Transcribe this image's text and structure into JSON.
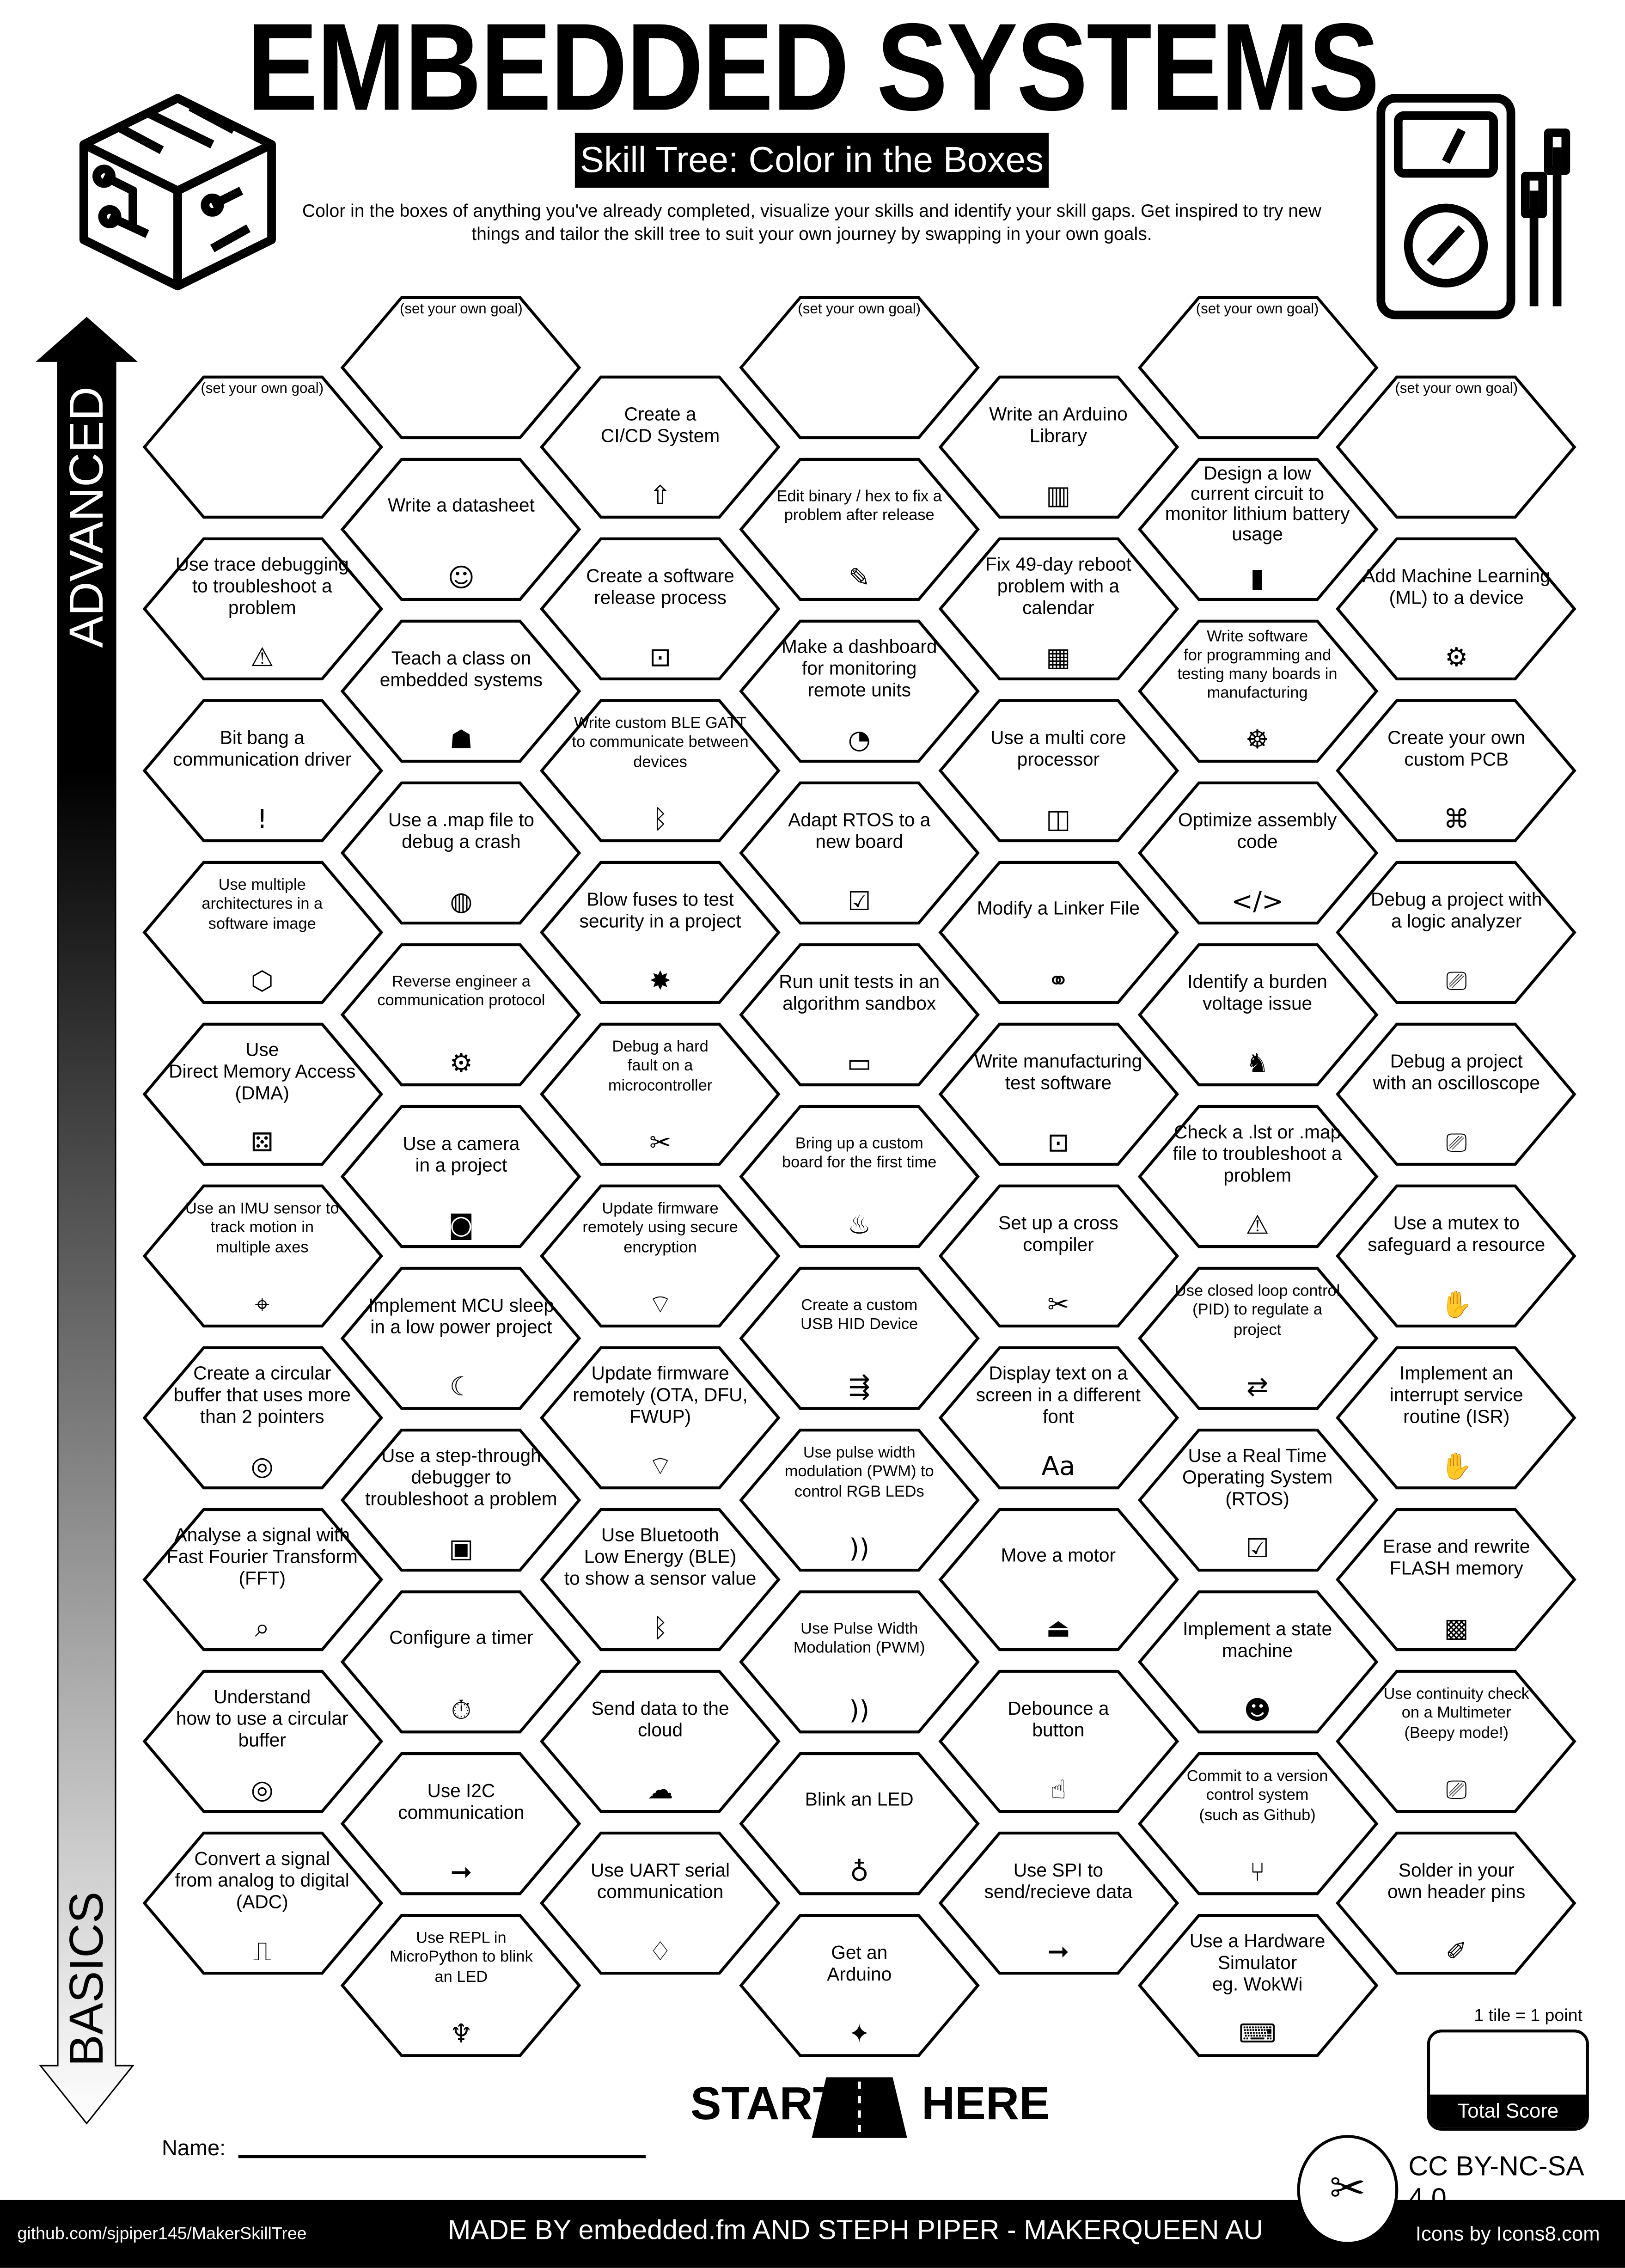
{
  "header": {
    "title": "EMBEDDED SYSTEMS",
    "subtitle": "Skill Tree: Color in the Boxes",
    "intro": "Color in the boxes of anything you've already completed, visualize your skills and identify your skill gaps.  Get inspired to try new things and tailor the skill tree to suit your own journey by swapping in your own goals.",
    "logo_icon": "circuit-cube-icon",
    "meter_icon": "multimeter-icon"
  },
  "axis": {
    "top": "ADVANCED",
    "bottom": "BASICS"
  },
  "columns": [
    [
      {
        "goal": "(set your own goal)"
      },
      {
        "label": "Use trace debugging\nto troubleshoot a\nproblem",
        "icon": "monitor-alert"
      },
      {
        "label": "Bit bang a\ncommunication driver",
        "icon": "exclamation"
      },
      {
        "label": "Use multiple\narchitectures in a\nsoftware image",
        "icon": "cube-network",
        "small": true
      },
      {
        "label": "Use\nDirect Memory Access\n(DMA)",
        "icon": "dice"
      },
      {
        "label": "Use an IMU sensor to\ntrack motion in\nmultiple axes",
        "icon": "cube-axes",
        "small": true
      },
      {
        "label": "Create a circular\nbuffer that uses more\nthan 2 pointers",
        "icon": "ring"
      },
      {
        "label": "Analyse a signal with\nFast Fourier Transform\n(FFT)",
        "icon": "magnifier-signal"
      },
      {
        "label": "Understand\nhow to use a circular\nbuffer",
        "icon": "ring"
      },
      {
        "label": "Convert a signal\nfrom analog to digital\n(ADC)",
        "icon": "square-wave"
      }
    ],
    [
      {
        "goal": "(set your own goal)"
      },
      {
        "label": "Write a datasheet",
        "icon": "document"
      },
      {
        "label": "Teach a class on\nembedded systems",
        "icon": "teacher"
      },
      {
        "label": "Use a .map file to\ndebug a crash",
        "icon": "globe"
      },
      {
        "label": "Reverse engineer a\ncommunication protocol",
        "icon": "gear-cycle",
        "small": true
      },
      {
        "label": "Use a camera\nin a project",
        "icon": "camera"
      },
      {
        "label": "Implement MCU sleep\nin a low power project",
        "icon": "sleep"
      },
      {
        "label": "Use a step-through\ndebugger to\ntroubleshoot a problem",
        "icon": "monitor-bug"
      },
      {
        "label": "Configure a timer",
        "icon": "stopwatch"
      },
      {
        "label": "Use I2C\ncommunication",
        "icon": "data-arrow"
      },
      {
        "label": "Use REPL in\nMicroPython to blink\nan LED",
        "icon": "python",
        "small": true
      }
    ],
    [
      {
        "label": "Create a\nCI/CD System",
        "icon": "rocket"
      },
      {
        "label": "Create a software\nrelease process",
        "icon": "release-box"
      },
      {
        "label": "Write custom BLE GATT\nto communicate between\ndevices",
        "icon": "bluetooth",
        "small": true
      },
      {
        "label": "Blow fuses to test\nsecurity in a project",
        "icon": "explosion"
      },
      {
        "label": "Debug a hard\nfault on a\nmicrocontroller",
        "icon": "tools",
        "small": true
      },
      {
        "label": "Update firmware\nremotely using secure\nencryption",
        "icon": "wifi-lock",
        "small": true
      },
      {
        "label": "Update firmware\nremotely (OTA, DFU,\nFWUP)",
        "icon": "wifi"
      },
      {
        "label": "Use Bluetooth\nLow Energy (BLE)\nto show a sensor value",
        "icon": "bluetooth"
      },
      {
        "label": "Send data to the\ncloud",
        "icon": "cloud"
      },
      {
        "label": "Use UART serial\ncommunication",
        "icon": "drop"
      }
    ],
    [
      {
        "goal": "(set your own goal)"
      },
      {
        "label": "Edit binary / hex to fix a\nproblem after release",
        "icon": "pencil",
        "small": true
      },
      {
        "label": "Make a dashboard\nfor monitoring\nremote units",
        "icon": "gauge"
      },
      {
        "label": "Adapt RTOS to a\nnew board",
        "icon": "monitor-check"
      },
      {
        "label": "Run unit tests in an\nalgorithm sandbox",
        "icon": "sandbox"
      },
      {
        "label": "Bring up a custom\nboard for the first time",
        "icon": "cake",
        "small": true
      },
      {
        "label": "Create a custom\nUSB HID Device",
        "icon": "usb",
        "small": true
      },
      {
        "label": "Use pulse width\nmodulation (PWM) to\ncontrol RGB LEDs",
        "icon": "pulse",
        "small": true
      },
      {
        "label": "Use Pulse Width\nModulation (PWM)",
        "icon": "pulse",
        "small": true
      },
      {
        "label": "Blink an LED",
        "icon": "led"
      },
      {
        "label": "Get an\nArduino",
        "icon": "party"
      }
    ],
    [
      {
        "label": "Write an Arduino\nLibrary",
        "icon": "books"
      },
      {
        "label": "Fix 49-day reboot\nproblem with a\ncalendar",
        "icon": "calendar"
      },
      {
        "label": "Use a multi core\nprocessor",
        "icon": "box"
      },
      {
        "label": "Modify a Linker File",
        "icon": "link"
      },
      {
        "label": "Write manufacturing\ntest software",
        "icon": "release-box"
      },
      {
        "label": "Set up a cross\ncompiler",
        "icon": "tools"
      },
      {
        "label": "Display text on a\nscreen in a different\nfont",
        "icon": "font"
      },
      {
        "label": "Move a motor",
        "icon": "motor"
      },
      {
        "label": "Debounce a\nbutton",
        "icon": "press"
      },
      {
        "label": "Use SPI to\nsend/recieve data",
        "icon": "data-arrow"
      }
    ],
    [
      {
        "goal": "(set your own goal)"
      },
      {
        "label": "Design a low\ncurrent circuit to\nmonitor lithium battery\nusage",
        "icon": "battery"
      },
      {
        "label": "Write software\nfor programming and\ntesting many boards in\nmanufacturing",
        "icon": "octopus",
        "small": true
      },
      {
        "label": "Optimize assembly\ncode",
        "icon": "code"
      },
      {
        "label": "Identify a burden\nvoltage issue",
        "icon": "donkey"
      },
      {
        "label": "Check a .lst or .map\nfile to troubleshoot a\nproblem",
        "icon": "monitor-alert"
      },
      {
        "label": "Use closed loop control\n(PID) to regulate a\nproject",
        "icon": "loop",
        "small": true
      },
      {
        "label": "Use a Real Time\nOperating System\n(RTOS)",
        "icon": "monitor-check"
      },
      {
        "label": "Implement a state\nmachine",
        "icon": "robot"
      },
      {
        "label": "Commit to a version\ncontrol system\n(such as Github)",
        "icon": "git",
        "small": true
      },
      {
        "label": "Use a Hardware\nSimulator\neg. WokWi",
        "icon": "laptop"
      }
    ],
    [
      {
        "goal": "(set your own goal)"
      },
      {
        "label": "Add Machine Learning\n(ML) to a device",
        "icon": "brain-gear"
      },
      {
        "label": "Create your own\ncustom PCB",
        "icon": "pcb"
      },
      {
        "label": "Debug a project with\na logic analyzer",
        "icon": "multimeter"
      },
      {
        "label": "Debug a project\nwith an oscilloscope",
        "icon": "multimeter"
      },
      {
        "label": "Use a mutex to\nsafeguard a resource",
        "icon": "handshake"
      },
      {
        "label": "Implement an\ninterrupt service\nroutine (ISR)",
        "icon": "hand"
      },
      {
        "label": "Erase and rewrite\nFLASH memory",
        "icon": "chip"
      },
      {
        "label": "Use continuity check\non a Multimeter\n(Beepy mode!)",
        "icon": "multimeter",
        "small": true
      },
      {
        "label": "Solder in your\nown header pins",
        "icon": "soldering"
      }
    ]
  ],
  "start": {
    "left": "START",
    "right": "HERE",
    "icon": "road-icon"
  },
  "name_label": "Name:",
  "score": {
    "note": "1 tile = 1 point",
    "label": "Total Score"
  },
  "license": "CC BY-NC-SA 4.0",
  "badge_icon": "makerqueen-badge-icon",
  "footer": {
    "github": "github.com/sjpiper145/MakerSkillTree",
    "made_by": "MADE BY embedded.fm AND STEPH PIPER  -  MAKERQUEEN AU",
    "icons": "Icons by Icons8.com"
  }
}
